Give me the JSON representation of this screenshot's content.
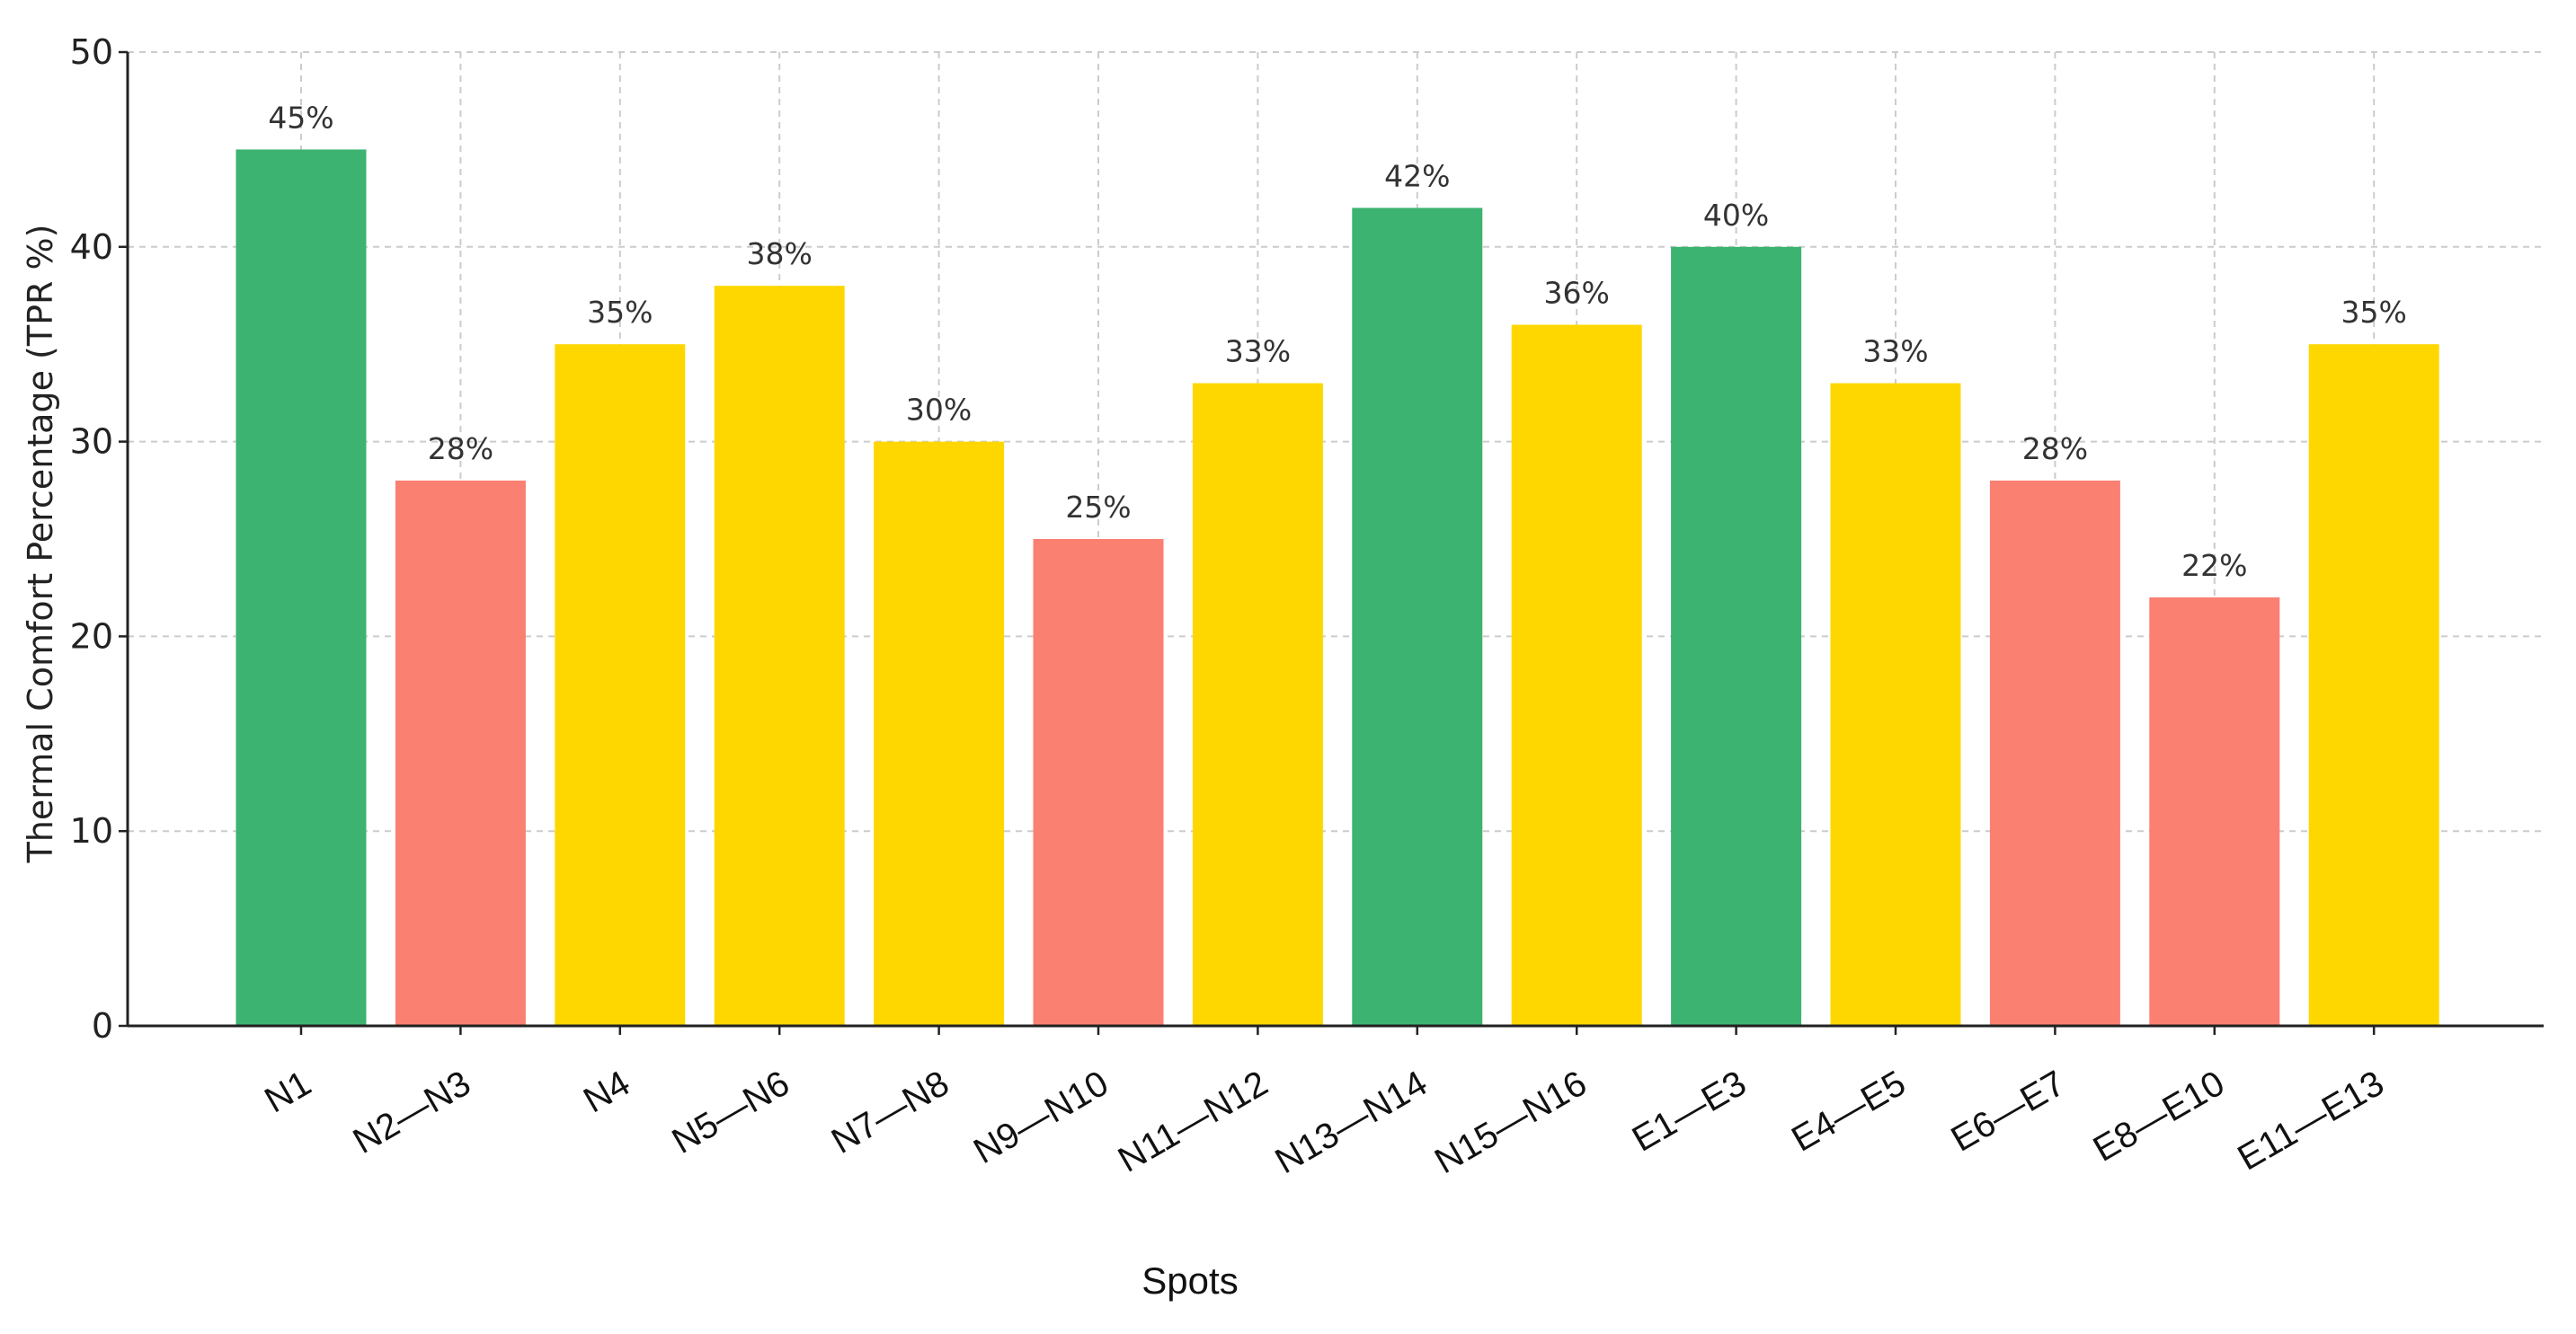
{
  "chart_data": {
    "type": "bar",
    "title": "",
    "xlabel": "Spots",
    "ylabel": "Thermal Comfort Percentage (TPR %)",
    "ylim": [
      0,
      50
    ],
    "yticks": [
      0,
      10,
      20,
      30,
      40,
      50
    ],
    "grid": true,
    "legend": "none",
    "categories": [
      "N1",
      "N2—N3",
      "N4",
      "N5—N6",
      "N7—N8",
      "N9—N10",
      "N11—N12",
      "N13—N14",
      "N15—N16",
      "E1—E3",
      "E4—E5",
      "E6—E7",
      "E8—E10",
      "E11—E13"
    ],
    "values": [
      45,
      28,
      35,
      38,
      30,
      25,
      33,
      42,
      36,
      40,
      33,
      28,
      22,
      35
    ],
    "data_labels": [
      "45%",
      "28%",
      "35%",
      "38%",
      "30%",
      "25%",
      "33%",
      "42%",
      "36%",
      "40%",
      "33%",
      "28%",
      "22%",
      "35%"
    ],
    "bar_colors": [
      "#3cb371",
      "#fa8072",
      "#ffd700",
      "#ffd700",
      "#ffd700",
      "#fa8072",
      "#ffd700",
      "#3cb371",
      "#ffd700",
      "#3cb371",
      "#ffd700",
      "#fa8072",
      "#fa8072",
      "#ffd700"
    ]
  }
}
